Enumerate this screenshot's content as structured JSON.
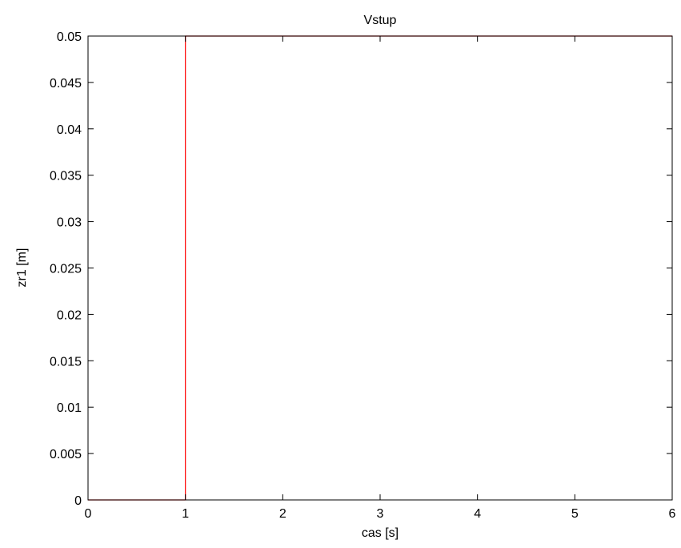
{
  "chart_data": {
    "type": "line",
    "title": "Vstup",
    "xlabel": "cas [s]",
    "ylabel": "zr1 [m]",
    "xlim": [
      0,
      6
    ],
    "ylim": [
      0,
      0.05
    ],
    "x_ticks": [
      "0",
      "1",
      "2",
      "3",
      "4",
      "5",
      "6"
    ],
    "y_ticks": [
      "0",
      "0.005",
      "0.01",
      "0.015",
      "0.02",
      "0.025",
      "0.03",
      "0.035",
      "0.04",
      "0.045",
      "0.05"
    ],
    "grid": false,
    "series": [
      {
        "color": "#ff0000",
        "x": [
          0,
          1,
          1,
          6
        ],
        "y": [
          0,
          0,
          0.05,
          0.05
        ]
      }
    ]
  }
}
